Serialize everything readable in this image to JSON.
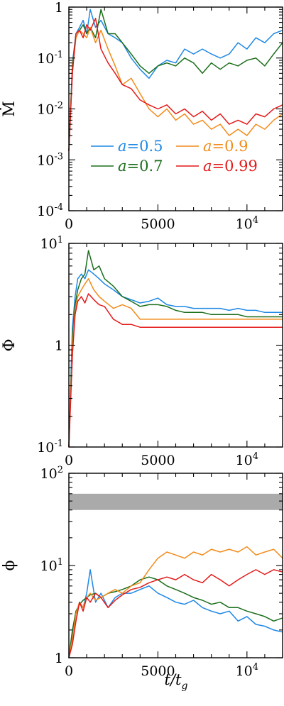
{
  "colors": {
    "a05": "#1e88e5",
    "a07": "#1b6e1b",
    "a09": "#f28c1a",
    "a099": "#e41a1a",
    "band": "#aaaaaa"
  },
  "legend": [
    {
      "key": "a05",
      "pre": "a",
      "post": "=0.5"
    },
    {
      "key": "a09",
      "pre": "a",
      "post": "=0.9"
    },
    {
      "key": "a07",
      "pre": "a",
      "post": "=0.7"
    },
    {
      "key": "a099",
      "pre": "a",
      "post": "=0.99"
    }
  ],
  "xaxis": {
    "label_main": "t/t",
    "label_sub": "g",
    "ticks": [
      "0",
      "5000",
      "10"
    ],
    "tick_sup": "4"
  },
  "chart_data": [
    {
      "type": "line",
      "ylabel": "Ṁ",
      "yscale": "log",
      "ylim": [
        0.0001,
        1
      ],
      "xlim": [
        0,
        12000
      ],
      "ytick_labels": [
        "1",
        "10",
        "10",
        "10",
        "10"
      ],
      "ytick_sups": [
        "",
        "-1",
        "-2",
        "-3",
        "-4"
      ],
      "series": [
        {
          "name": "a=0.5",
          "color_key": "a05",
          "x": [
            0,
            200,
            400,
            600,
            800,
            1000,
            1200,
            1500,
            1800,
            2200,
            2600,
            3000,
            3500,
            4000,
            4500,
            5000,
            5500,
            6000,
            6500,
            7000,
            7500,
            8000,
            8500,
            9000,
            9500,
            10000,
            10500,
            11000,
            11500,
            12000
          ],
          "y": [
            0.0015,
            0.08,
            0.3,
            0.4,
            0.55,
            0.3,
            0.9,
            0.4,
            0.55,
            0.3,
            0.25,
            0.2,
            0.1,
            0.06,
            0.04,
            0.07,
            0.09,
            0.08,
            0.15,
            0.12,
            0.15,
            0.12,
            0.1,
            0.12,
            0.2,
            0.15,
            0.25,
            0.2,
            0.3,
            0.35
          ]
        },
        {
          "name": "a=0.7",
          "color_key": "a07",
          "x": [
            0,
            200,
            400,
            600,
            800,
            1000,
            1200,
            1500,
            1800,
            2200,
            2600,
            3000,
            3500,
            4000,
            4500,
            5000,
            5500,
            6000,
            6500,
            7000,
            7500,
            8000,
            8500,
            9000,
            9500,
            10000,
            10500,
            11000,
            11500,
            12000
          ],
          "y": [
            0.0015,
            0.07,
            0.3,
            0.35,
            0.45,
            0.3,
            0.4,
            0.25,
            0.9,
            0.3,
            0.3,
            0.2,
            0.12,
            0.07,
            0.05,
            0.07,
            0.08,
            0.07,
            0.1,
            0.08,
            0.05,
            0.08,
            0.06,
            0.08,
            0.07,
            0.09,
            0.1,
            0.07,
            0.12,
            0.2
          ]
        },
        {
          "name": "a=0.9",
          "color_key": "a09",
          "x": [
            0,
            200,
            400,
            600,
            800,
            1000,
            1200,
            1500,
            1800,
            2200,
            2600,
            3000,
            3500,
            4000,
            4500,
            5000,
            5500,
            6000,
            6500,
            7000,
            7500,
            8000,
            8500,
            9000,
            9500,
            10000,
            10500,
            11000,
            11500,
            12000
          ],
          "y": [
            0.0015,
            0.06,
            0.25,
            0.35,
            0.3,
            0.25,
            0.4,
            0.2,
            0.35,
            0.15,
            0.07,
            0.03,
            0.04,
            0.02,
            0.01,
            0.007,
            0.01,
            0.006,
            0.008,
            0.005,
            0.006,
            0.004,
            0.005,
            0.003,
            0.004,
            0.003,
            0.005,
            0.004,
            0.006,
            0.008
          ]
        },
        {
          "name": "a=0.99",
          "color_key": "a099",
          "x": [
            0,
            200,
            400,
            600,
            800,
            1000,
            1200,
            1500,
            1800,
            2200,
            2600,
            3000,
            3500,
            4000,
            4500,
            5000,
            5500,
            6000,
            6500,
            7000,
            7500,
            8000,
            8500,
            9000,
            9500,
            10000,
            10500,
            11000,
            11500,
            12000
          ],
          "y": [
            0.0015,
            0.05,
            0.3,
            0.35,
            0.25,
            0.45,
            0.35,
            0.6,
            0.15,
            0.08,
            0.05,
            0.03,
            0.025,
            0.015,
            0.012,
            0.01,
            0.012,
            0.008,
            0.01,
            0.007,
            0.009,
            0.006,
            0.008,
            0.005,
            0.006,
            0.005,
            0.008,
            0.007,
            0.01,
            0.012
          ]
        }
      ]
    },
    {
      "type": "line",
      "ylabel": "Φ",
      "yscale": "log",
      "ylim": [
        0.1,
        10
      ],
      "xlim": [
        0,
        12000
      ],
      "ytick_labels": [
        "10",
        "1",
        "10"
      ],
      "ytick_sups": [
        "1",
        "",
        "-1"
      ],
      "series": [
        {
          "name": "a=0.5",
          "color_key": "a05",
          "x": [
            0,
            200,
            350,
            500,
            700,
            900,
            1100,
            1400,
            1700,
            2000,
            2500,
            3000,
            3500,
            4000,
            4500,
            5000,
            5500,
            6000,
            6500,
            7000,
            7500,
            8000,
            8500,
            9000,
            9500,
            10000,
            10500,
            11000,
            11500,
            12000
          ],
          "y": [
            0.1,
            1.5,
            3,
            4.5,
            5,
            4.5,
            5.5,
            5,
            4.5,
            4,
            3.5,
            3,
            2.8,
            2.6,
            2.7,
            2.9,
            2.5,
            2.4,
            2.4,
            2.3,
            2.3,
            2.3,
            2.3,
            2.2,
            2.3,
            2.2,
            2.2,
            2.1,
            2.1,
            2.1
          ]
        },
        {
          "name": "a=0.7",
          "color_key": "a07",
          "x": [
            0,
            200,
            350,
            500,
            700,
            900,
            1100,
            1400,
            1700,
            2000,
            2500,
            3000,
            3500,
            4000,
            4500,
            5000,
            5500,
            6000,
            6500,
            7000,
            7500,
            8000,
            8500,
            9000,
            9500,
            10000,
            10500,
            11000,
            11500,
            12000
          ],
          "y": [
            0.1,
            1.2,
            2.5,
            3.5,
            4.5,
            5,
            8.5,
            5.5,
            6,
            4.5,
            3.8,
            3,
            2.7,
            2.4,
            2.5,
            2.5,
            2.4,
            2.2,
            2.1,
            2.1,
            2.1,
            2,
            2,
            2,
            2,
            1.9,
            1.9,
            1.9,
            1.9,
            1.9
          ]
        },
        {
          "name": "a=0.9",
          "color_key": "a09",
          "x": [
            0,
            200,
            350,
            500,
            700,
            900,
            1100,
            1400,
            1700,
            2000,
            2500,
            3000,
            3500,
            4000,
            4500,
            5000,
            5500,
            6000,
            6500,
            7000,
            7500,
            8000,
            8500,
            9000,
            9500,
            10000,
            10500,
            11000,
            11500,
            12000
          ],
          "y": [
            0.1,
            1.0,
            2.2,
            3,
            3.5,
            4,
            4.5,
            3.5,
            3,
            2.7,
            2.3,
            2.5,
            2.3,
            1.8,
            1.8,
            1.8,
            1.8,
            1.8,
            1.8,
            1.8,
            1.8,
            1.8,
            1.8,
            1.8,
            1.8,
            1.8,
            1.8,
            1.8,
            1.8,
            1.8
          ]
        },
        {
          "name": "a=0.99",
          "color_key": "a099",
          "x": [
            0,
            200,
            350,
            500,
            700,
            900,
            1100,
            1400,
            1700,
            2000,
            2500,
            3000,
            3500,
            4000,
            4500,
            5000,
            5500,
            6000,
            6500,
            7000,
            7500,
            8000,
            8500,
            9000,
            9500,
            10000,
            10500,
            11000,
            11500,
            12000
          ],
          "y": [
            0.1,
            0.8,
            2,
            2.7,
            3,
            2.6,
            3.2,
            2.8,
            2.5,
            2.4,
            1.8,
            1.6,
            1.6,
            1.5,
            1.5,
            1.5,
            1.5,
            1.5,
            1.5,
            1.5,
            1.5,
            1.5,
            1.5,
            1.5,
            1.5,
            1.5,
            1.5,
            1.5,
            1.5,
            1.5
          ]
        }
      ]
    },
    {
      "type": "line",
      "ylabel": "ϕ",
      "yscale": "log",
      "ylim": [
        1,
        100
      ],
      "xlim": [
        0,
        12000
      ],
      "ytick_labels": [
        "10",
        "10",
        "1"
      ],
      "ytick_sups": [
        "2",
        "1",
        ""
      ],
      "band": [
        40,
        60
      ],
      "series": [
        {
          "name": "a=0.5",
          "color_key": "a05",
          "x": [
            0,
            200,
            400,
            600,
            800,
            1000,
            1200,
            1500,
            1800,
            2200,
            2600,
            3000,
            3500,
            4000,
            4500,
            5000,
            5500,
            6000,
            6500,
            7000,
            7500,
            8000,
            8500,
            9000,
            9500,
            10000,
            10500,
            11000,
            11500,
            12000
          ],
          "y": [
            1,
            1.8,
            3,
            4,
            3.5,
            5,
            9,
            4,
            5,
            3.5,
            4.5,
            5,
            5,
            5.5,
            6,
            5,
            4.5,
            4,
            3.8,
            4.2,
            3.5,
            3.2,
            3,
            3.2,
            2.5,
            2.8,
            2.3,
            2.2,
            2.0,
            1.9
          ]
        },
        {
          "name": "a=0.7",
          "color_key": "a07",
          "x": [
            0,
            200,
            400,
            600,
            800,
            1000,
            1200,
            1500,
            1800,
            2200,
            2600,
            3000,
            3500,
            4000,
            4500,
            5000,
            5500,
            6000,
            6500,
            7000,
            7500,
            8000,
            8500,
            9000,
            9500,
            10000,
            10500,
            11000,
            11500,
            12000
          ],
          "y": [
            1,
            2.0,
            3.2,
            3.8,
            4.2,
            4.5,
            4.8,
            5,
            4.5,
            5,
            5.2,
            5.5,
            6,
            7,
            7.5,
            7,
            6,
            5.5,
            5,
            4.5,
            4.2,
            3.8,
            4,
            3.5,
            3.5,
            3.2,
            3,
            2.8,
            2.5,
            2.7
          ]
        },
        {
          "name": "a=0.9",
          "color_key": "a09",
          "x": [
            0,
            200,
            400,
            600,
            800,
            1000,
            1200,
            1500,
            1800,
            2200,
            2600,
            3000,
            3500,
            4000,
            4500,
            5000,
            5500,
            6000,
            6500,
            7000,
            7500,
            8000,
            8500,
            9000,
            9500,
            10000,
            10500,
            11000,
            11500,
            12000
          ],
          "y": [
            1,
            1.6,
            3,
            4,
            3.5,
            4.5,
            5,
            4.2,
            4.5,
            5,
            5.5,
            5,
            6,
            6.5,
            9,
            12,
            14,
            13,
            12,
            14,
            13,
            15,
            14,
            15,
            14,
            16,
            13,
            14,
            15,
            12
          ]
        },
        {
          "name": "a=0.99",
          "color_key": "a099",
          "x": [
            0,
            200,
            400,
            600,
            800,
            1000,
            1200,
            1500,
            1800,
            2200,
            2600,
            3000,
            3500,
            4000,
            4500,
            5000,
            5500,
            6000,
            6500,
            7000,
            7500,
            8000,
            8500,
            9000,
            9500,
            10000,
            10500,
            11000,
            11500,
            12000
          ],
          "y": [
            1,
            1.4,
            2.5,
            4,
            3.2,
            4.5,
            4,
            5,
            4.5,
            3.5,
            4.2,
            4.8,
            5.5,
            5.8,
            6.5,
            7,
            7.5,
            7,
            8,
            7,
            6.5,
            8,
            7,
            6,
            7,
            8,
            9,
            8,
            9,
            8.5
          ]
        }
      ]
    }
  ]
}
